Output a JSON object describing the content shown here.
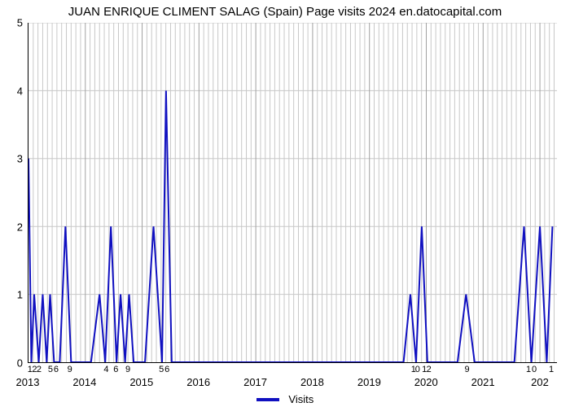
{
  "title": "JUAN ENRIQUE CLIMENT SALAG (Spain) Page visits 2024 en.datocapital.com",
  "chart": {
    "type": "line",
    "background_color": "#ffffff",
    "grid_color": "#c8c8c8",
    "line_color": "#1010c0",
    "line_width": 2,
    "ylim": [
      0,
      5
    ],
    "yticks": [
      0,
      1,
      2,
      3,
      4,
      5
    ],
    "xlim_years": [
      2013,
      2022.3
    ],
    "year_ticks": [
      2013,
      2014,
      2015,
      2016,
      2017,
      2018,
      2019,
      2020,
      2021
    ],
    "year_last_label": "202",
    "upper_x_labels": [
      {
        "x": 2013.04,
        "t": "1"
      },
      {
        "x": 2013.12,
        "t": "2"
      },
      {
        "x": 2013.2,
        "t": "2"
      },
      {
        "x": 2013.4,
        "t": "5"
      },
      {
        "x": 2013.5,
        "t": "6"
      },
      {
        "x": 2013.74,
        "t": "9"
      },
      {
        "x": 2014.38,
        "t": "4"
      },
      {
        "x": 2014.55,
        "t": "6"
      },
      {
        "x": 2014.76,
        "t": "9"
      },
      {
        "x": 2015.35,
        "t": "5"
      },
      {
        "x": 2015.45,
        "t": "6"
      },
      {
        "x": 2019.78,
        "t": "1"
      },
      {
        "x": 2019.85,
        "t": "0"
      },
      {
        "x": 2019.97,
        "t": "1"
      },
      {
        "x": 2020.05,
        "t": "2"
      },
      {
        "x": 2020.72,
        "t": "9"
      },
      {
        "x": 2021.8,
        "t": "1"
      },
      {
        "x": 2021.9,
        "t": "0"
      },
      {
        "x": 2022.2,
        "t": "1"
      }
    ],
    "series": {
      "name": "Visits",
      "points": [
        [
          2013.0,
          3.0
        ],
        [
          2013.05,
          0.0
        ],
        [
          2013.1,
          1.0
        ],
        [
          2013.18,
          0.0
        ],
        [
          2013.25,
          1.0
        ],
        [
          2013.32,
          0.0
        ],
        [
          2013.38,
          1.0
        ],
        [
          2013.45,
          0.0
        ],
        [
          2013.55,
          0.0
        ],
        [
          2013.65,
          2.0
        ],
        [
          2013.75,
          0.0
        ],
        [
          2014.1,
          0.0
        ],
        [
          2014.25,
          1.0
        ],
        [
          2014.35,
          0.0
        ],
        [
          2014.45,
          2.0
        ],
        [
          2014.55,
          0.0
        ],
        [
          2014.62,
          1.0
        ],
        [
          2014.7,
          0.0
        ],
        [
          2014.77,
          1.0
        ],
        [
          2014.85,
          0.0
        ],
        [
          2015.05,
          0.0
        ],
        [
          2015.2,
          2.0
        ],
        [
          2015.35,
          0.0
        ],
        [
          2015.42,
          4.0
        ],
        [
          2015.52,
          0.0
        ],
        [
          2019.6,
          0.0
        ],
        [
          2019.72,
          1.0
        ],
        [
          2019.82,
          0.0
        ],
        [
          2019.92,
          2.0
        ],
        [
          2020.02,
          0.0
        ],
        [
          2020.55,
          0.0
        ],
        [
          2020.7,
          1.0
        ],
        [
          2020.85,
          0.0
        ],
        [
          2021.55,
          0.0
        ],
        [
          2021.72,
          2.0
        ],
        [
          2021.85,
          0.0
        ],
        [
          2022.0,
          2.0
        ],
        [
          2022.12,
          0.0
        ],
        [
          2022.22,
          2.0
        ]
      ]
    }
  },
  "legend": {
    "label": "Visits"
  }
}
